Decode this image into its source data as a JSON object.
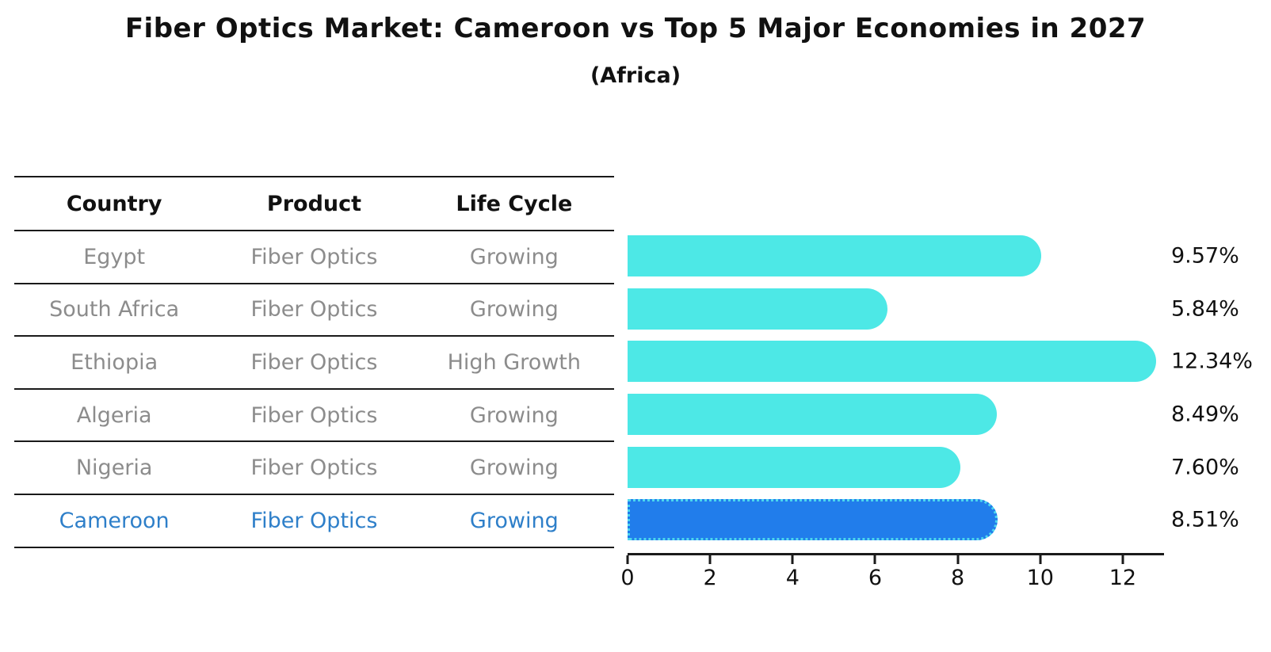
{
  "title": "Fiber Optics Market: Cameroon vs Top 5 Major Economies in 2027",
  "subtitle": "(Africa)",
  "colors": {
    "bar": "#4de8e6",
    "bar_highlight": "#217deb",
    "bar_highlight_edge": "#4dd7ee",
    "table_text_muted": "#8c8c8c",
    "table_text_highlight": "#2e7fc9",
    "text_dark": "#111111"
  },
  "table": {
    "columns": [
      "Country",
      "Product",
      "Life Cycle"
    ],
    "rows": [
      {
        "country": "Egypt",
        "product": "Fiber Optics",
        "life_cycle": "Growing",
        "highlight": false
      },
      {
        "country": "South Africa",
        "product": "Fiber Optics",
        "life_cycle": "Growing",
        "highlight": false
      },
      {
        "country": "Ethiopia",
        "product": "Fiber Optics",
        "life_cycle": "High Growth",
        "highlight": false
      },
      {
        "country": "Algeria",
        "product": "Fiber Optics",
        "life_cycle": "Growing",
        "highlight": false
      },
      {
        "country": "Nigeria",
        "product": "Fiber Optics",
        "life_cycle": "Growing",
        "highlight": false
      },
      {
        "country": "Cameroon",
        "product": "Fiber Optics",
        "life_cycle": "Growing",
        "highlight": true
      }
    ]
  },
  "chart_data": {
    "type": "bar",
    "orientation": "horizontal",
    "title": "Fiber Optics Market: Cameroon vs Top 5 Major Economies in 2027",
    "subtitle": "(Africa)",
    "categories": [
      "Egypt",
      "South Africa",
      "Ethiopia",
      "Algeria",
      "Nigeria",
      "Cameroon"
    ],
    "values": [
      9.57,
      5.84,
      12.34,
      8.49,
      7.6,
      8.51
    ],
    "value_labels": [
      "9.57%",
      "5.84%",
      "12.34%",
      "8.49%",
      "7.60%",
      "8.51%"
    ],
    "highlight_category": "Cameroon",
    "xlabel": "",
    "ylabel": "",
    "xlim": [
      0,
      13
    ],
    "xticks": [
      0,
      2,
      4,
      6,
      8,
      10,
      12
    ],
    "grid": false,
    "legend": false
  }
}
